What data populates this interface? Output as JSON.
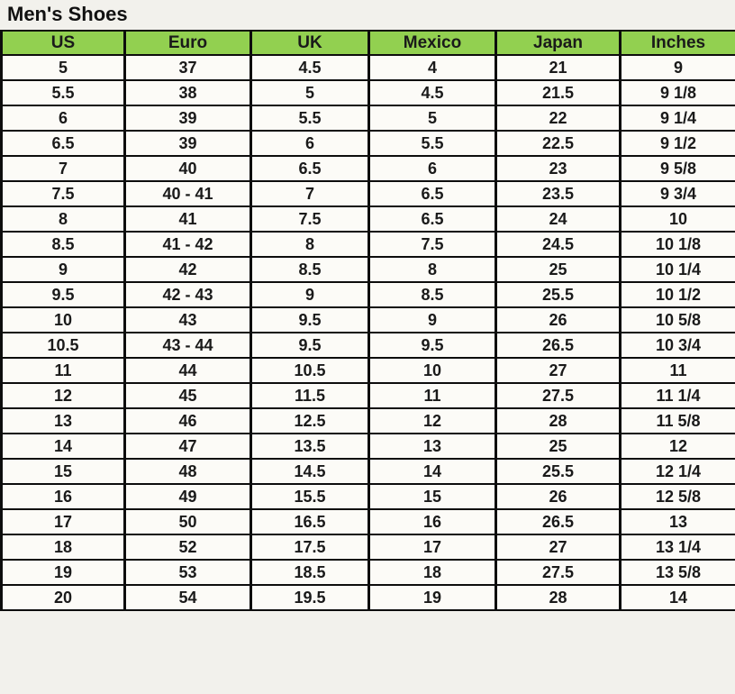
{
  "title": "Men's Shoes",
  "colors": {
    "header_background": "#92d050",
    "border": "#0d0d0d",
    "cell_background": "#fcfbf7",
    "page_background": "#f2f1ec",
    "text": "#1a1a1a"
  },
  "chart_data": {
    "type": "table",
    "title": "Men's Shoes",
    "columns": [
      "US",
      "Euro",
      "UK",
      "Mexico",
      "Japan",
      "Inches"
    ],
    "rows": [
      [
        "5",
        "37",
        "4.5",
        "4",
        "21",
        "9"
      ],
      [
        "5.5",
        "38",
        "5",
        "4.5",
        "21.5",
        "9 1/8"
      ],
      [
        "6",
        "39",
        "5.5",
        "5",
        "22",
        "9 1/4"
      ],
      [
        "6.5",
        "39",
        "6",
        "5.5",
        "22.5",
        "9 1/2"
      ],
      [
        "7",
        "40",
        "6.5",
        "6",
        "23",
        "9 5/8"
      ],
      [
        "7.5",
        "40 - 41",
        "7",
        "6.5",
        "23.5",
        "9 3/4"
      ],
      [
        "8",
        "41",
        "7.5",
        "6.5",
        "24",
        "10"
      ],
      [
        "8.5",
        "41 - 42",
        "8",
        "7.5",
        "24.5",
        "10 1/8"
      ],
      [
        "9",
        "42",
        "8.5",
        "8",
        "25",
        "10 1/4"
      ],
      [
        "9.5",
        "42 - 43",
        "9",
        "8.5",
        "25.5",
        "10 1/2"
      ],
      [
        "10",
        "43",
        "9.5",
        "9",
        "26",
        "10 5/8"
      ],
      [
        "10.5",
        "43 - 44",
        "9.5",
        "9.5",
        "26.5",
        "10 3/4"
      ],
      [
        "11",
        "44",
        "10.5",
        "10",
        "27",
        "11"
      ],
      [
        "12",
        "45",
        "11.5",
        "11",
        "27.5",
        "11 1/4"
      ],
      [
        "13",
        "46",
        "12.5",
        "12",
        "28",
        "11 5/8"
      ],
      [
        "14",
        "47",
        "13.5",
        "13",
        "25",
        "12"
      ],
      [
        "15",
        "48",
        "14.5",
        "14",
        "25.5",
        "12 1/4"
      ],
      [
        "16",
        "49",
        "15.5",
        "15",
        "26",
        "12 5/8"
      ],
      [
        "17",
        "50",
        "16.5",
        "16",
        "26.5",
        "13"
      ],
      [
        "18",
        "52",
        "17.5",
        "17",
        "27",
        "13 1/4"
      ],
      [
        "19",
        "53",
        "18.5",
        "18",
        "27.5",
        "13 5/8"
      ],
      [
        "20",
        "54",
        "19.5",
        "19",
        "28",
        "14"
      ]
    ]
  }
}
